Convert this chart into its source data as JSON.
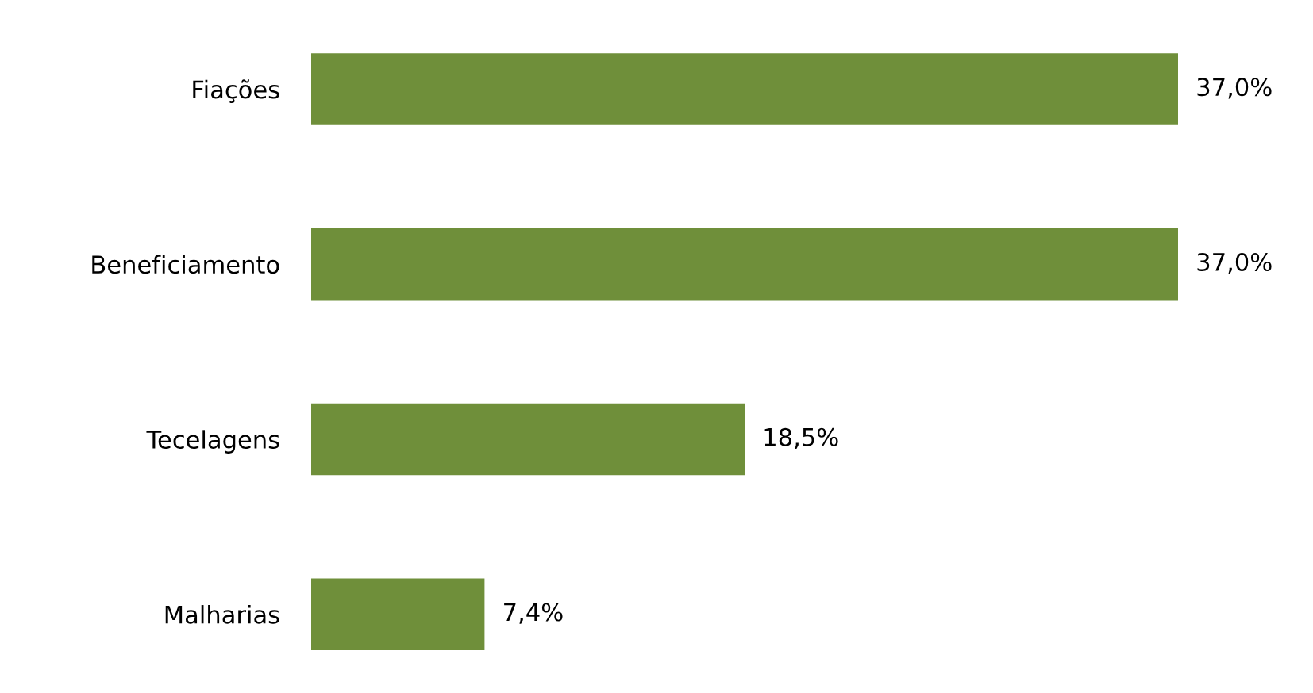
{
  "chart_data": {
    "type": "bar",
    "orientation": "horizontal",
    "categories": [
      "Fiações",
      "Beneficiamento",
      "Tecelagens",
      "Malharias"
    ],
    "values": [
      37.0,
      37.0,
      18.5,
      7.4
    ],
    "value_labels": [
      "37,0%",
      "37,0%",
      "18,5%",
      "7,4%"
    ],
    "color": "#6f8f3a",
    "grid": false,
    "legend": false
  }
}
